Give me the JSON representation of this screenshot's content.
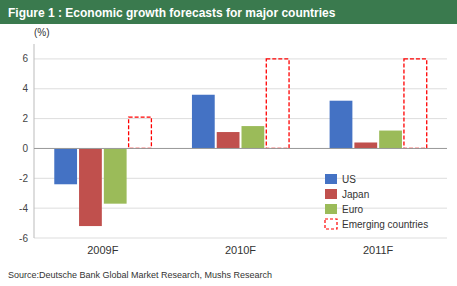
{
  "chart_data": {
    "type": "bar",
    "title": "Figure 1 :  Economic growth forecasts for major countries",
    "ylabel": "(%)",
    "annotations": [
      "Source:Deutsche Bank Global Market Research, Mushs Research"
    ],
    "categories": [
      "2009F",
      "2010F",
      "2011F"
    ],
    "series": [
      {
        "name": "US",
        "color": "#4472c4",
        "values": [
          -2.4,
          3.6,
          3.2
        ]
      },
      {
        "name": "Japan",
        "color": "#c0504d",
        "values": [
          -5.2,
          1.1,
          0.4
        ]
      },
      {
        "name": "Euro",
        "color": "#9bbb59",
        "values": [
          -3.7,
          1.5,
          1.2
        ]
      },
      {
        "name": "Emerging countries",
        "color": "#ff0000",
        "line_style": "dashed",
        "values": [
          2.1,
          6.0,
          6.0
        ]
      }
    ],
    "ylim": [
      -6,
      7
    ],
    "yticks": [
      -6,
      -4,
      -2,
      0,
      2,
      4,
      6
    ],
    "grid": true,
    "legend": "lower right"
  }
}
